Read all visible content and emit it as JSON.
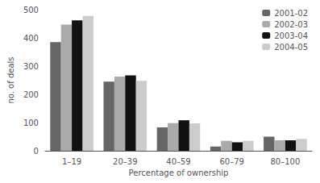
{
  "chart_data": {
    "type": "bar",
    "xlabel": "Percentage of ownership",
    "ylabel": "no. of deals",
    "categories": [
      "1–19",
      "20–39",
      "40–59",
      "60–79",
      "80–100"
    ],
    "series": [
      {
        "name": "2001-02",
        "color": "#666666",
        "values": [
          385,
          245,
          83,
          15,
          50
        ]
      },
      {
        "name": "2002-03",
        "color": "#aaaaaa",
        "values": [
          447,
          263,
          98,
          35,
          37
        ]
      },
      {
        "name": "2003-04",
        "color": "#111111",
        "values": [
          462,
          267,
          108,
          30,
          37
        ]
      },
      {
        "name": "2004-05",
        "color": "#cccccc",
        "values": [
          478,
          248,
          97,
          35,
          42
        ]
      }
    ],
    "ylim": [
      0,
      500
    ],
    "yticks": [
      0,
      100,
      200,
      300,
      400,
      500
    ],
    "grid": false,
    "legend": "upper right"
  }
}
